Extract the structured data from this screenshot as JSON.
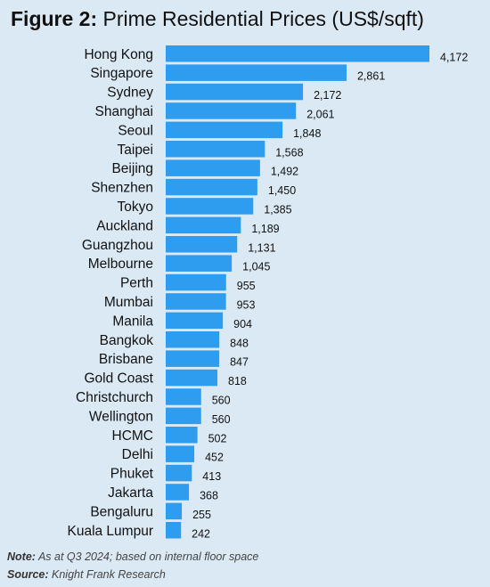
{
  "figure": {
    "label": "Figure 2:",
    "title": "Prime Residential Prices (US$/sqft)"
  },
  "chart_data": {
    "type": "bar",
    "orientation": "horizontal",
    "categories": [
      "Hong Kong",
      "Singapore",
      "Sydney",
      "Shanghai",
      "Seoul",
      "Taipei",
      "Beijing",
      "Shenzhen",
      "Tokyo",
      "Auckland",
      "Guangzhou",
      "Melbourne",
      "Perth",
      "Mumbai",
      "Manila",
      "Bangkok",
      "Brisbane",
      "Gold Coast",
      "Christchurch",
      "Wellington",
      "HCMC",
      "Delhi",
      "Phuket",
      "Jakarta",
      "Bengaluru",
      "Kuala Lumpur"
    ],
    "values": [
      4172,
      2861,
      2172,
      2061,
      1848,
      1568,
      1492,
      1450,
      1385,
      1189,
      1131,
      1045,
      955,
      953,
      904,
      848,
      847,
      818,
      560,
      560,
      502,
      452,
      413,
      368,
      255,
      242
    ],
    "value_labels": [
      "4,172",
      "2,861",
      "2,172",
      "2,061",
      "1,848",
      "1,568",
      "1,492",
      "1,450",
      "1,385",
      "1,189",
      "1,131",
      "1,045",
      "955",
      "953",
      "904",
      "848",
      "847",
      "818",
      "560",
      "560",
      "502",
      "452",
      "413",
      "368",
      "255",
      "242"
    ],
    "bar_color": "#2e9cef",
    "grid": false,
    "legend": "none"
  },
  "footer": {
    "note_label": "Note:",
    "note_text": " As at Q3 2024; based on internal floor space",
    "source_label": "Source:",
    "source_text": " Knight Frank Research"
  }
}
